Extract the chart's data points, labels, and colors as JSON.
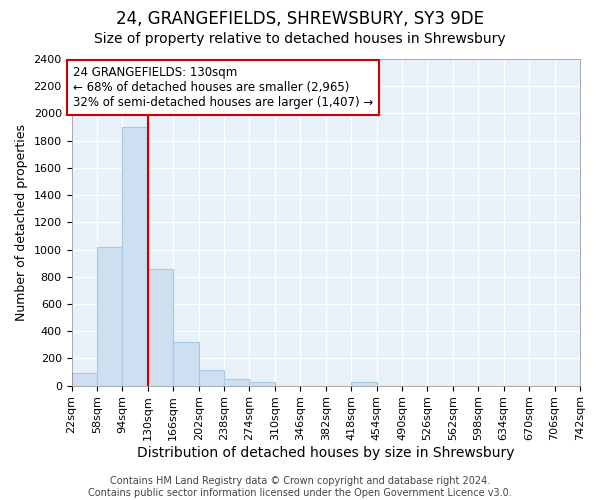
{
  "title": "24, GRANGEFIELDS, SHREWSBURY, SY3 9DE",
  "subtitle": "Size of property relative to detached houses in Shrewsbury",
  "xlabel": "Distribution of detached houses by size in Shrewsbury",
  "ylabel": "Number of detached properties",
  "bar_color": "#cddff0",
  "bar_edge_color": "#aac8e0",
  "vline_color": "#cc0000",
  "annotation_line1": "24 GRANGEFIELDS: 130sqm",
  "annotation_line2": "← 68% of detached houses are smaller (2,965)",
  "annotation_line3": "32% of semi-detached houses are larger (1,407) →",
  "annotation_box_color": "#ffffff",
  "annotation_box_edge": "#cc0000",
  "footer": "Contains HM Land Registry data © Crown copyright and database right 2024.\nContains public sector information licensed under the Open Government Licence v3.0.",
  "bin_edges": [
    22,
    58,
    94,
    130,
    166,
    202,
    238,
    274,
    310,
    346,
    382,
    418,
    454,
    490,
    526,
    562,
    598,
    634,
    670,
    706,
    742
  ],
  "bar_heights": [
    90,
    1020,
    1900,
    860,
    320,
    115,
    50,
    30,
    0,
    0,
    0,
    30,
    0,
    0,
    0,
    0,
    0,
    0,
    0,
    0
  ],
  "vline_x_bin": 3,
  "ylim": [
    0,
    2400
  ],
  "yticks": [
    0,
    200,
    400,
    600,
    800,
    1000,
    1200,
    1400,
    1600,
    1800,
    2000,
    2200,
    2400
  ],
  "background_color": "#e8f0f8",
  "grid_color": "#ffffff",
  "title_fontsize": 12,
  "subtitle_fontsize": 10,
  "xlabel_fontsize": 10,
  "ylabel_fontsize": 9,
  "tick_fontsize": 8,
  "footer_fontsize": 7
}
